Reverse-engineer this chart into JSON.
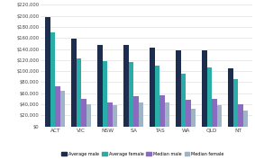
{
  "categories": [
    "ACT",
    "VIC",
    "NSW",
    "SA",
    "TAS",
    "WA",
    "QLD",
    "NT"
  ],
  "series": {
    "Average male": [
      197000,
      158000,
      147000,
      147000,
      143000,
      138000,
      137000,
      105000
    ],
    "Average female": [
      170000,
      123000,
      118000,
      117000,
      110000,
      96000,
      107000,
      85000
    ],
    "Median male": [
      73000,
      50000,
      44000,
      55000,
      57000,
      48000,
      50000,
      40000
    ],
    "Median female": [
      65000,
      40000,
      38000,
      44000,
      44000,
      32000,
      38000,
      29000
    ]
  },
  "colors": {
    "Average male": "#1d2d4e",
    "Average female": "#2aada8",
    "Median male": "#8b6bbf",
    "Median female": "#a0b4c8"
  },
  "ylim": [
    0,
    220000
  ],
  "yticks": [
    0,
    20000,
    40000,
    60000,
    80000,
    100000,
    120000,
    140000,
    160000,
    180000,
    200000,
    220000
  ],
  "background_color": "#ffffff",
  "plot_bg": "#ffffff",
  "grid_color": "#e0e0e0",
  "legend_order": [
    "Average male",
    "Average female",
    "Median male",
    "Median female"
  ]
}
